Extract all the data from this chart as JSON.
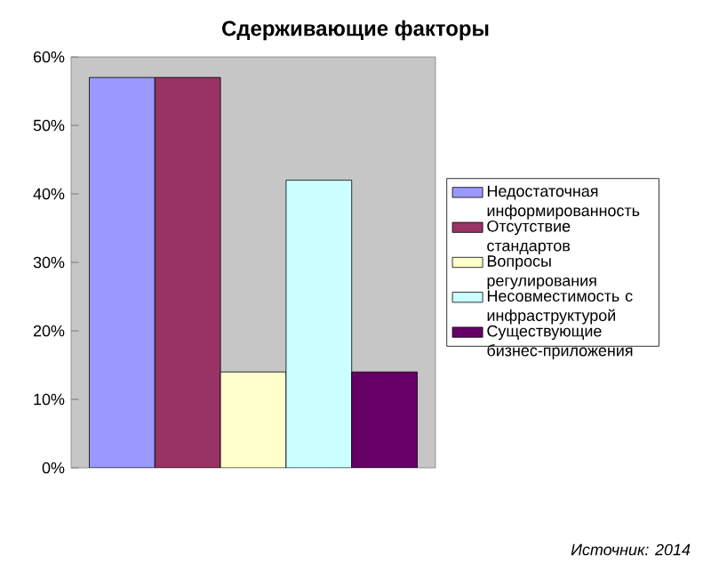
{
  "chart_data": {
    "type": "bar",
    "title": "Сдерживающие факторы",
    "categories": [
      null
    ],
    "series": [
      {
        "name": "Недостаточная информированность",
        "color": "#9999ff",
        "values": [
          57
        ]
      },
      {
        "name": "Отсутствие стандартов",
        "color": "#993366",
        "values": [
          57
        ]
      },
      {
        "name": "Вопросы регулирования",
        "color": "#ffffcc",
        "values": [
          14
        ]
      },
      {
        "name": "Несовместимость с инфраструктурой",
        "color": "#ccffff",
        "values": [
          42
        ]
      },
      {
        "name": "Существующие бизнес-приложения",
        "color": "#660066",
        "values": [
          14
        ]
      }
    ],
    "ylim": [
      0,
      60
    ],
    "yticks": [
      {
        "value": 0,
        "label": "0%"
      },
      {
        "value": 10,
        "label": "10%"
      },
      {
        "value": 20,
        "label": "20%"
      },
      {
        "value": 30,
        "label": "30%"
      },
      {
        "value": 40,
        "label": "40%"
      },
      {
        "value": 50,
        "label": "50%"
      },
      {
        "value": 60,
        "label": "60%"
      }
    ],
    "legend": "right",
    "grid": false,
    "annotations": [
      "Источник: 2014"
    ]
  }
}
